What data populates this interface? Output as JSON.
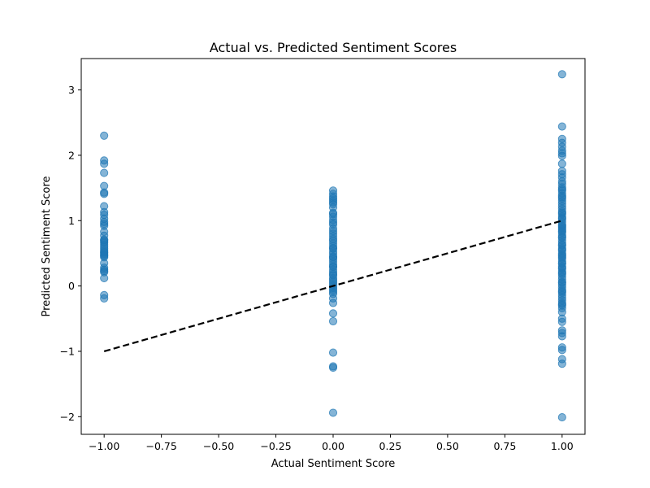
{
  "chart_data": {
    "type": "scatter",
    "title": "Actual vs. Predicted Sentiment Scores",
    "xlabel": "Actual Sentiment Score",
    "ylabel": "Predicted Sentiment Score",
    "xlim": [
      -1.1,
      1.1
    ],
    "ylim": [
      -2.27,
      3.48
    ],
    "xticks": [
      -1.0,
      -0.75,
      -0.5,
      -0.25,
      0.0,
      0.25,
      0.5,
      0.75,
      1.0
    ],
    "xtick_labels": [
      "−1.00",
      "−0.75",
      "−0.50",
      "−0.25",
      "0.00",
      "0.25",
      "0.50",
      "0.75",
      "1.00"
    ],
    "yticks": [
      -2,
      -1,
      0,
      1,
      2,
      3
    ],
    "ytick_labels": [
      "−2",
      "−1",
      "0",
      "1",
      "2",
      "3"
    ],
    "grid": false,
    "point_color": "#1f77b4",
    "point_alpha": 0.55,
    "line_color": "#000000",
    "series": [
      {
        "x": [
          -1,
          -1,
          -1,
          -1,
          -1,
          -1,
          -1,
          -1,
          -1,
          -1,
          -1,
          -1,
          -1,
          -1,
          -1,
          -1,
          -1,
          -1,
          -1,
          -1,
          -1,
          -1,
          -1,
          -1,
          -1,
          -1,
          -1,
          -1,
          -1,
          -1,
          -1,
          -1,
          -1,
          -1,
          -1,
          -1,
          -1,
          -1
        ],
        "y": [
          2.3,
          1.92,
          1.87,
          1.73,
          1.53,
          1.43,
          1.41,
          1.22,
          1.13,
          1.09,
          1.03,
          0.98,
          0.95,
          0.92,
          0.83,
          0.77,
          0.7,
          0.68,
          0.66,
          0.63,
          0.6,
          0.57,
          0.54,
          0.51,
          0.49,
          0.46,
          0.44,
          0.35,
          0.28,
          0.25,
          0.23,
          0.21,
          0.12,
          -0.14,
          -0.19,
          0.71,
          0.52,
          0.47
        ]
      },
      {
        "x": [
          0,
          0,
          0,
          0,
          0,
          0,
          0,
          0,
          0,
          0,
          0,
          0,
          0,
          0,
          0,
          0,
          0,
          0,
          0,
          0,
          0,
          0,
          0,
          0,
          0,
          0,
          0,
          0,
          0,
          0,
          0,
          0,
          0,
          0,
          0,
          0,
          0,
          0,
          0,
          0,
          0,
          0,
          0,
          0,
          0,
          0,
          0,
          0,
          0,
          0,
          0,
          0,
          0,
          0
        ],
        "y": [
          1.46,
          1.41,
          1.37,
          1.34,
          1.31,
          1.28,
          1.25,
          1.2,
          1.12,
          1.1,
          1.06,
          1.01,
          0.97,
          0.94,
          0.88,
          0.84,
          0.8,
          0.76,
          0.72,
          0.69,
          0.65,
          0.61,
          0.57,
          0.53,
          0.49,
          0.45,
          0.41,
          0.37,
          0.33,
          0.29,
          0.25,
          0.21,
          0.16,
          0.12,
          0.09,
          0.06,
          0.03,
          0.0,
          -0.03,
          -0.06,
          -0.09,
          -0.12,
          -0.19,
          -0.26,
          -0.42,
          -0.54,
          -1.02,
          -1.23,
          -1.25,
          -1.94,
          0.58,
          0.44,
          0.3,
          0.18
        ]
      },
      {
        "x": [
          1,
          1,
          1,
          1,
          1,
          1,
          1,
          1,
          1,
          1,
          1,
          1,
          1,
          1,
          1,
          1,
          1,
          1,
          1,
          1,
          1,
          1,
          1,
          1,
          1,
          1,
          1,
          1,
          1,
          1,
          1,
          1,
          1,
          1,
          1,
          1,
          1,
          1,
          1,
          1,
          1,
          1,
          1,
          1,
          1,
          1,
          1,
          1,
          1,
          1,
          1,
          1,
          1,
          1,
          1,
          1,
          1,
          1,
          1,
          1,
          1,
          1,
          1,
          1,
          1,
          1,
          1,
          1,
          1,
          1,
          1,
          1,
          1,
          1,
          1,
          1,
          1,
          1,
          1,
          1,
          1,
          1,
          1,
          1,
          1,
          1,
          1,
          1,
          1,
          1
        ],
        "y": [
          3.24,
          2.44,
          2.25,
          2.19,
          2.13,
          2.07,
          2.03,
          1.99,
          1.87,
          1.76,
          1.71,
          1.66,
          1.6,
          1.56,
          1.51,
          1.46,
          1.42,
          1.38,
          1.34,
          1.3,
          1.26,
          1.22,
          1.18,
          1.14,
          1.1,
          1.06,
          1.02,
          0.98,
          0.94,
          0.9,
          0.86,
          0.82,
          0.78,
          0.74,
          0.7,
          0.66,
          0.62,
          0.58,
          0.54,
          0.5,
          0.46,
          0.42,
          0.38,
          0.34,
          0.3,
          0.26,
          0.22,
          0.18,
          0.14,
          0.1,
          0.06,
          0.02,
          -0.02,
          -0.06,
          -0.1,
          -0.14,
          -0.18,
          -0.22,
          -0.26,
          -0.3,
          -0.34,
          -0.4,
          -0.5,
          -0.55,
          -0.68,
          -0.72,
          -0.77,
          -0.94,
          -0.98,
          -1.12,
          -1.19,
          -2.01,
          1.12,
          0.92,
          0.75,
          0.63,
          0.48,
          0.35,
          0.2,
          0.05,
          -0.08,
          1.36,
          1.04,
          0.84,
          0.56,
          0.28,
          -0.28,
          1.48,
          0.88,
          0.44
        ]
      }
    ],
    "reference_line": {
      "x": [
        -1,
        1
      ],
      "y": [
        -1,
        1
      ],
      "style": "dashed"
    }
  }
}
